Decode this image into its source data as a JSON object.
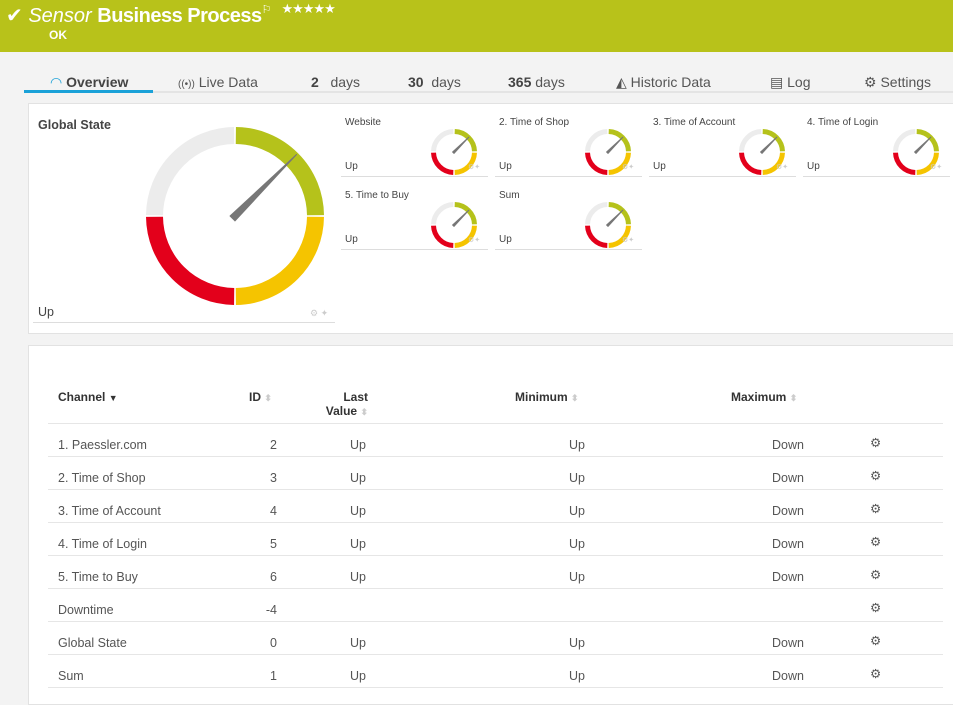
{
  "header": {
    "prefix": "Sensor",
    "name": "Business Process",
    "status": "OK",
    "stars": "★★★★★",
    "bg": "#b8c21a"
  },
  "tabs": [
    {
      "label": "Overview",
      "icon": "gauge-icon"
    },
    {
      "label": "Live Data",
      "icon": "broadcast-icon"
    },
    {
      "num": "2",
      "label": "days"
    },
    {
      "num": "30",
      "label": "days"
    },
    {
      "num": "365",
      "label": "days"
    },
    {
      "label": "Historic Data",
      "icon": "area-chart-icon"
    },
    {
      "label": "Log",
      "icon": "list-icon"
    },
    {
      "label": "Settings",
      "icon": "gear-icon"
    }
  ],
  "gauge_colors": {
    "ok": "#b5c21b",
    "warning": "#f5c400",
    "error": "#e3001b",
    "empty": "#ececec",
    "needle": "#777777"
  },
  "global": {
    "title": "Global State",
    "value": "Up"
  },
  "gauges": [
    {
      "title": "Website",
      "value": "Up"
    },
    {
      "title": "2. Time of Shop",
      "value": "Up"
    },
    {
      "title": "3. Time of Account",
      "value": "Up"
    },
    {
      "title": "4. Time of Login",
      "value": "Up"
    },
    {
      "title": "5. Time to Buy",
      "value": "Up"
    },
    {
      "title": "Sum",
      "value": "Up"
    }
  ],
  "table": {
    "headers": {
      "channel": "Channel",
      "id": "ID",
      "last1": "Last",
      "last2": "Value",
      "min": "Minimum",
      "max": "Maximum"
    },
    "rows": [
      {
        "channel": "1. Paessler.com",
        "id": "2",
        "last": "Up",
        "min": "Up",
        "max": "Down"
      },
      {
        "channel": "2. Time of Shop",
        "id": "3",
        "last": "Up",
        "min": "Up",
        "max": "Down"
      },
      {
        "channel": "3. Time of Account",
        "id": "4",
        "last": "Up",
        "min": "Up",
        "max": "Down"
      },
      {
        "channel": "4. Time of Login",
        "id": "5",
        "last": "Up",
        "min": "Up",
        "max": "Down"
      },
      {
        "channel": "5. Time to Buy",
        "id": "6",
        "last": "Up",
        "min": "Up",
        "max": "Down"
      },
      {
        "channel": "Downtime",
        "id": "-4",
        "last": "",
        "min": "",
        "max": ""
      },
      {
        "channel": "Global State",
        "id": "0",
        "last": "Up",
        "min": "Up",
        "max": "Down"
      },
      {
        "channel": "Sum",
        "id": "1",
        "last": "Up",
        "min": "Up",
        "max": "Down"
      }
    ]
  }
}
